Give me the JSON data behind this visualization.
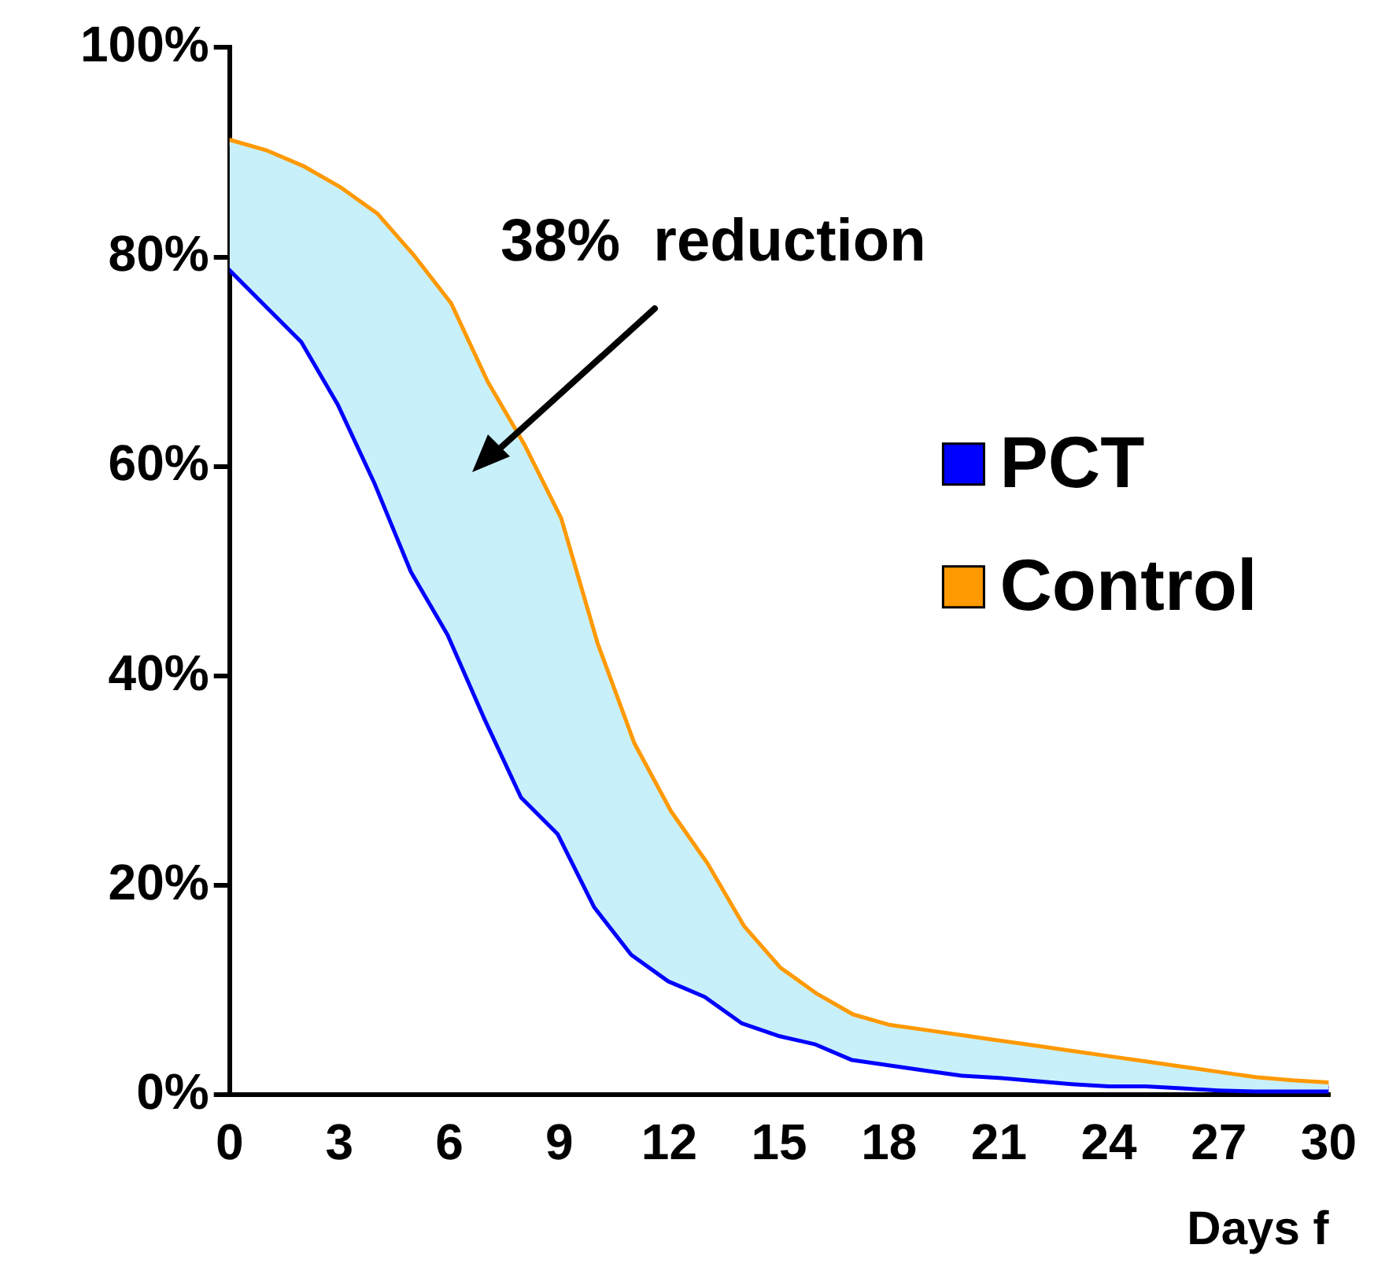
{
  "chart_data": {
    "type": "line",
    "xlabel": "Days f",
    "x": [
      0,
      1,
      2,
      3,
      4,
      5,
      6,
      7,
      8,
      9,
      10,
      11,
      12,
      13,
      14,
      15,
      16,
      17,
      18,
      19,
      20,
      21,
      22,
      23,
      24,
      25,
      26,
      27,
      28,
      29,
      30
    ],
    "series": [
      {
        "name": "PCT",
        "color": "#0000ff",
        "values": [
          79,
          75.5,
          72,
          66,
          58.5,
          50,
          44,
          36,
          28.5,
          25,
          18,
          13.5,
          11,
          9.5,
          7,
          5.8,
          5,
          3.5,
          3,
          2.5,
          2,
          1.8,
          1.5,
          1.2,
          1,
          1,
          0.8,
          0.6,
          0.5,
          0.5,
          0.5
        ]
      },
      {
        "name": "Control",
        "color": "#ff9900",
        "lower": [
          79,
          75.5,
          72,
          66,
          58.5,
          50,
          44,
          36,
          28.5,
          25,
          18,
          13.5,
          11,
          9.5,
          7,
          5.8,
          5,
          3.5,
          3,
          2.5,
          2,
          1.8,
          1.5,
          1.2,
          1,
          1,
          0.8,
          0.6,
          0.5,
          0.5,
          0.5
        ],
        "upper": [
          91,
          90,
          88.5,
          86.5,
          84,
          80,
          75.5,
          68,
          62,
          55,
          43,
          33.5,
          27,
          22,
          16,
          12,
          9.5,
          7.5,
          6.5,
          6,
          5.5,
          5,
          4.5,
          4,
          3.5,
          3,
          2.5,
          2,
          1.5,
          1.2,
          1
        ],
        "values": [
          91,
          90,
          88.5,
          86.5,
          84,
          80,
          75.5,
          68,
          62,
          55,
          43,
          33.5,
          27,
          22,
          16,
          12,
          9.5,
          7.5,
          6.5,
          6,
          5.5,
          5,
          4.5,
          4,
          3.5,
          3,
          2.5,
          2,
          1.5,
          1.2,
          1
        ]
      }
    ],
    "xlim": [
      0,
      30
    ],
    "xticks": [
      0,
      3,
      6,
      9,
      12,
      15,
      18,
      21,
      24,
      27,
      30
    ],
    "ylim": [
      0,
      100
    ],
    "yticks": [
      {
        "value": 0,
        "label": "0%"
      },
      {
        "value": 20,
        "label": "20%"
      },
      {
        "value": 40,
        "label": "40%"
      },
      {
        "value": 60,
        "label": "60%"
      },
      {
        "value": 80,
        "label": "80%"
      },
      {
        "value": 100,
        "label": "100%"
      }
    ],
    "annotations": [
      "38%  reduction"
    ],
    "legend": "right",
    "grid": false,
    "marker": "none",
    "line_style": "solid"
  }
}
